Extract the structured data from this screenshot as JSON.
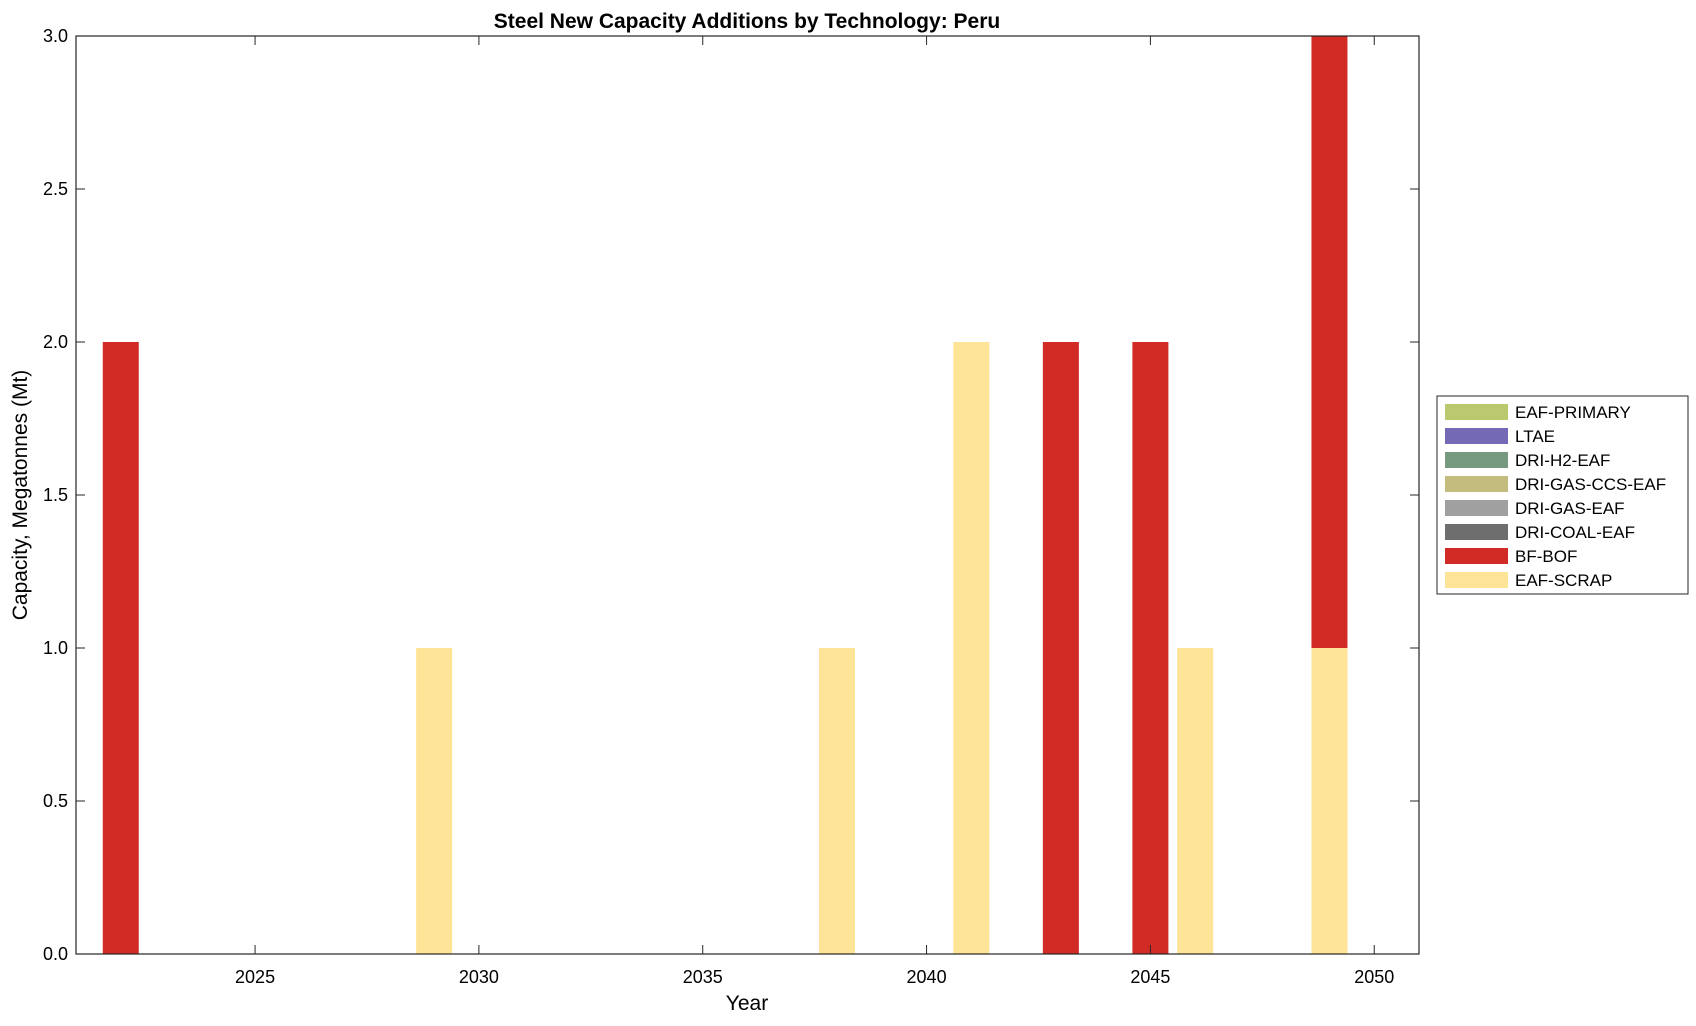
{
  "chart_data": {
    "type": "bar",
    "stacked": true,
    "title": "Steel New Capacity Additions by Technology: Peru",
    "xlabel": "Year",
    "ylabel": "Capacity, Megatonnes (Mt)",
    "xlim": [
      2021,
      2051
    ],
    "ylim": [
      0,
      3
    ],
    "x_ticks": [
      2025,
      2030,
      2035,
      2040,
      2045,
      2050
    ],
    "y_ticks": [
      "0.0",
      "0.5",
      "1.0",
      "1.5",
      "2.0",
      "2.5",
      "3.0"
    ],
    "grid": false,
    "legend_position": "right",
    "x": [
      2022,
      2029,
      2038,
      2041,
      2043,
      2045,
      2046,
      2049
    ],
    "series": [
      {
        "name": "EAF-SCRAP",
        "color": "#fee496",
        "values": [
          0,
          1,
          1,
          2,
          0,
          0,
          1,
          1
        ]
      },
      {
        "name": "BF-BOF",
        "color": "#d22b25",
        "values": [
          2,
          0,
          0,
          0,
          2,
          2,
          0,
          2
        ]
      },
      {
        "name": "DRI-COAL-EAF",
        "color": "#6e6e6e",
        "values": [
          0,
          0,
          0,
          0,
          0,
          0,
          0,
          0
        ]
      },
      {
        "name": "DRI-GAS-EAF",
        "color": "#a0a0a0",
        "values": [
          0,
          0,
          0,
          0,
          0,
          0,
          0,
          0
        ]
      },
      {
        "name": "DRI-GAS-CCS-EAF",
        "color": "#c4bb7e",
        "values": [
          0,
          0,
          0,
          0,
          0,
          0,
          0,
          0
        ]
      },
      {
        "name": "DRI-H2-EAF",
        "color": "#769a7d",
        "values": [
          0,
          0,
          0,
          0,
          0,
          0,
          0,
          0
        ]
      },
      {
        "name": "LTAE",
        "color": "#7469b5",
        "values": [
          0,
          0,
          0,
          0,
          0,
          0,
          0,
          0
        ]
      },
      {
        "name": "EAF-PRIMARY",
        "color": "#bcc86e",
        "values": [
          0,
          0,
          0,
          0,
          0,
          0,
          0,
          0
        ]
      }
    ],
    "legend_order": [
      "EAF-PRIMARY",
      "LTAE",
      "DRI-H2-EAF",
      "DRI-GAS-CCS-EAF",
      "DRI-GAS-EAF",
      "DRI-COAL-EAF",
      "BF-BOF",
      "EAF-SCRAP"
    ]
  }
}
